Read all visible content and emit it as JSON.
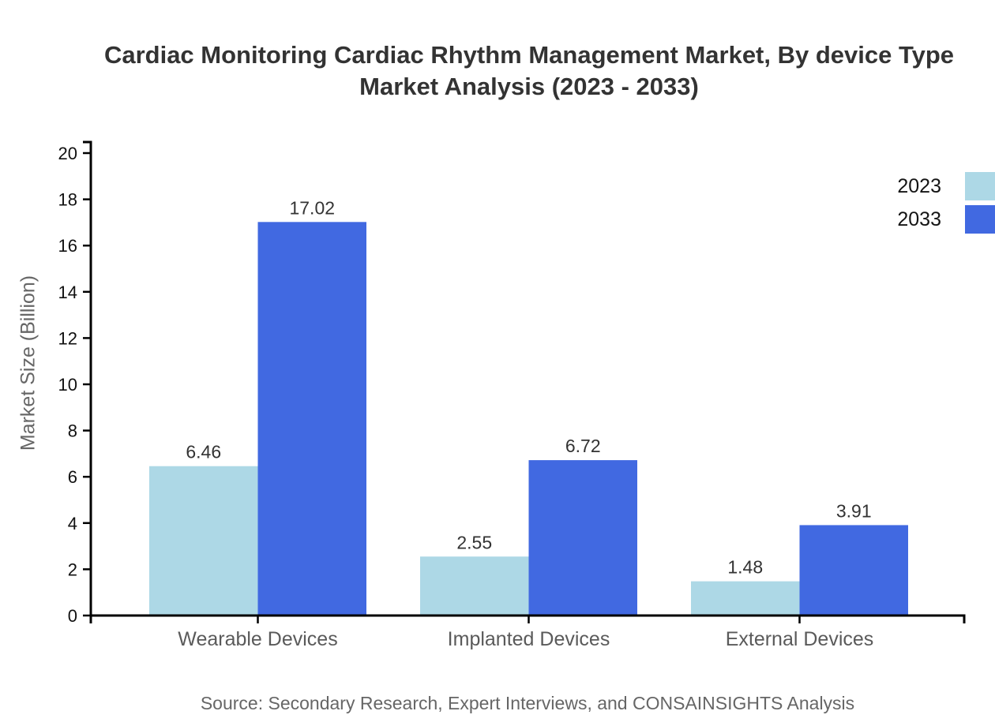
{
  "title": {
    "line1": "Cardiac Monitoring Cardiac Rhythm Management Market, By device Type",
    "line2": "Market Analysis (2023 - 2033)"
  },
  "legend": {
    "items": [
      {
        "label": "2023",
        "color": "#ADD8E6"
      },
      {
        "label": "2033",
        "color": "#4169E1"
      }
    ]
  },
  "source_note": "Source: Secondary Research, Expert Interviews, and CONSAINSIGHTS Analysis",
  "chart_data": {
    "type": "bar",
    "title": "Cardiac Monitoring Cardiac Rhythm Management Market, By device Type Market Analysis (2023 - 2033)",
    "categories": [
      "Wearable Devices",
      "Implanted Devices",
      "External Devices"
    ],
    "series": [
      {
        "name": "2023",
        "color": "#ADD8E6",
        "values": [
          6.46,
          2.55,
          1.48
        ]
      },
      {
        "name": "2033",
        "color": "#4169E1",
        "values": [
          17.02,
          6.72,
          3.91
        ]
      }
    ],
    "xlabel": "",
    "ylabel": "Market Size (Billion)",
    "ylim": [
      0,
      20
    ],
    "yticks": [
      0,
      2,
      4,
      6,
      8,
      10,
      12,
      14,
      16,
      18,
      20
    ],
    "grid": false,
    "legend_position": "top-right",
    "value_labels": true,
    "axis_color": "#000000",
    "tick_label_color": "#111111",
    "category_label_color": "#5a5a5a",
    "value_label_color": "#333333"
  }
}
